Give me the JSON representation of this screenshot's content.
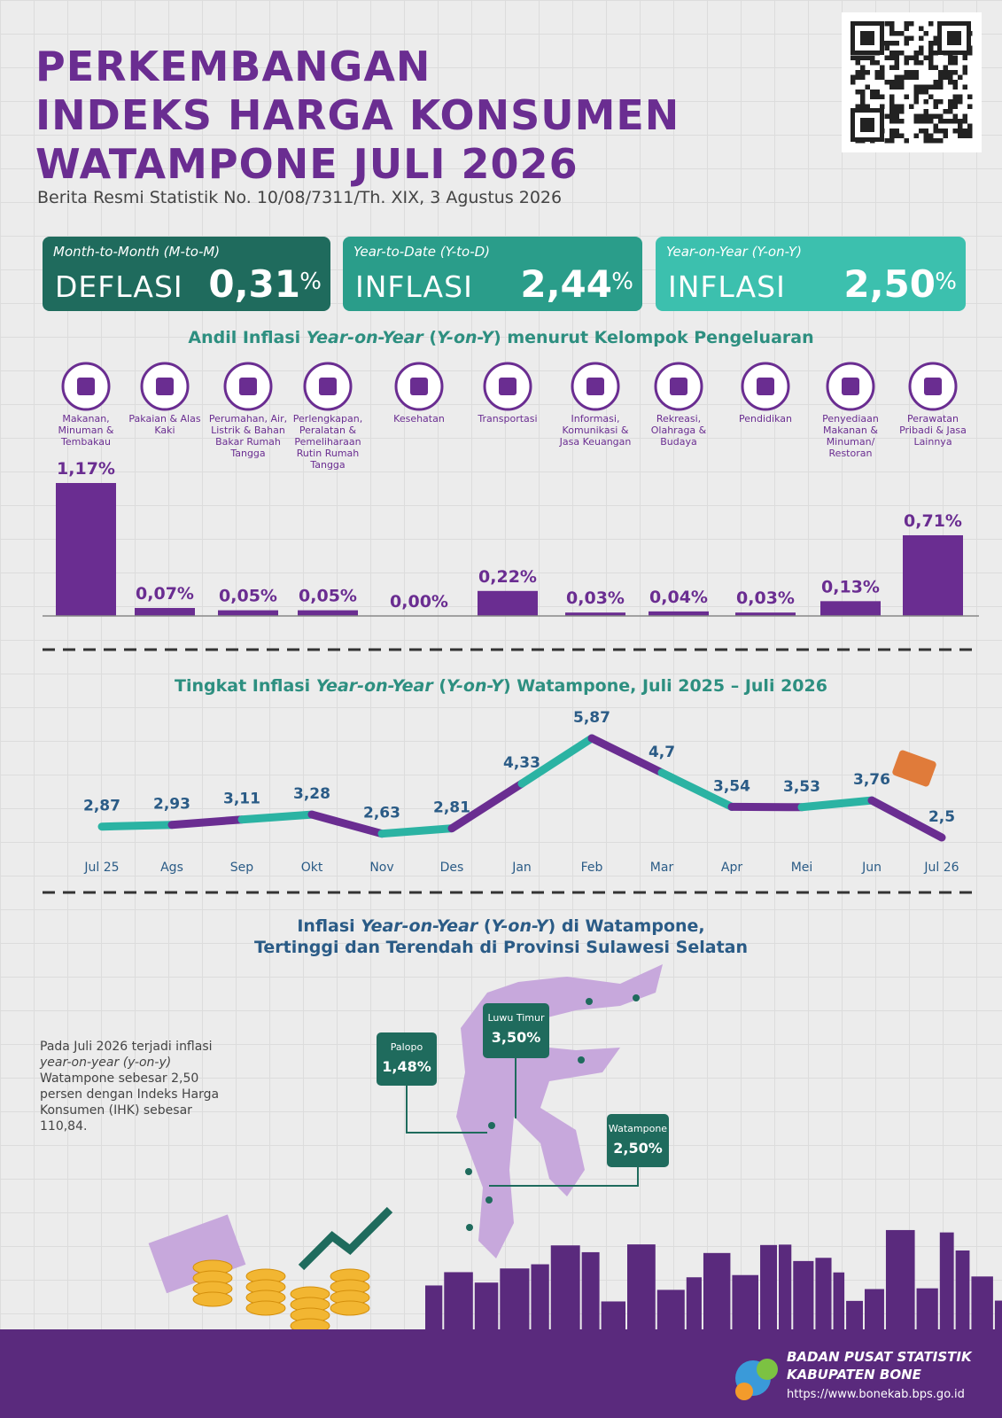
{
  "header": {
    "title_lines": [
      "PERKEMBANGAN",
      "INDEKS HARGA KONSUMEN",
      "WATAMPONE JULI 2026"
    ],
    "subtitle": "Berita Resmi Statistik No. 10/08/7311/Th. XIX, 3 Agustus 2026"
  },
  "indicators": [
    {
      "period": "Month-to-Month (M-to-M)",
      "status": "DEFLASI",
      "value": "0,31",
      "unit": "%",
      "color": "#1f6b5d"
    },
    {
      "period": "Year-to-Date (Y-to-D)",
      "status": "INFLASI",
      "value": "2,44",
      "unit": "%",
      "color": "#2a9d8a"
    },
    {
      "period": "Year-on-Year (Y-on-Y)",
      "status": "INFLASI",
      "value": "2,50",
      "unit": "%",
      "color": "#3cc0ae"
    }
  ],
  "chart_data": [
    {
      "type": "bar",
      "title_parts": [
        "Andil Inflasi ",
        "Year-on-Year",
        " (",
        "Y-on-Y",
        ") menurut Kelompok Pengeluaran"
      ],
      "categories": [
        "Makanan, Minuman & Tembakau",
        "Pakaian & Alas Kaki",
        "Perumahan, Air, Listrik & Bahan Bakar Rumah Tangga",
        "Perlengkapan, Peralatan & Pemeliharaan Rutin Rumah Tangga",
        "Kesehatan",
        "Transportasi",
        "Informasi, Komunikasi & Jasa Keuangan",
        "Rekreasi, Olahraga & Budaya",
        "Pendidikan",
        "Penyediaan Makanan & Minuman/ Restoran",
        "Perawatan Pribadi & Jasa Lainnya"
      ],
      "values": [
        1.17,
        0.07,
        0.05,
        0.05,
        0,
        0.22,
        0.03,
        0.04,
        0.03,
        0.13,
        0.71
      ],
      "value_labels": [
        "1,17%",
        "0,07%",
        "0,05%",
        "0,05%",
        "0,00%",
        "0,22%",
        "0,03%",
        "0,04%",
        "0,03%",
        "0,13%",
        "0,71%"
      ],
      "color": "#6a2d91"
    },
    {
      "type": "line",
      "title_parts": [
        "Tingkat Inflasi ",
        "Year-on-Year",
        " (",
        "Y-on-Y",
        ") Watampone, Juli 2025 – Juli 2026"
      ],
      "categories": [
        "Jul 25",
        "Ags",
        "Sep",
        "Okt",
        "Nov",
        "Des",
        "Jan",
        "Feb",
        "Mar",
        "Apr",
        "Mei",
        "Jun",
        "Jul 26"
      ],
      "series": [
        {
          "values": [
            2.87,
            2.93,
            3.11,
            3.28,
            2.63,
            2.81,
            4.33,
            5.87,
            4.7,
            3.54,
            3.53,
            3.76,
            2.5
          ],
          "value_labels": [
            "2,87",
            "2,93",
            "3,11",
            "3,28",
            "2,63",
            "2,81",
            "4,33",
            "5,87",
            "4,7",
            "3,54",
            "3,53",
            "3,76",
            "2,5"
          ],
          "colors": [
            "#2bb3a3",
            "#6a2d91"
          ]
        }
      ]
    }
  ],
  "map": {
    "title_parts": [
      "Inflasi ",
      "Year-on-Year",
      " (",
      "Y-on-Y",
      ") di Watampone,"
    ],
    "subtitle": "Tertinggi dan Terendah di Provinsi Sulawesi Selatan",
    "callouts": [
      {
        "name": "Palopo",
        "value": "1,48%"
      },
      {
        "name": "Luwu Timur",
        "value": "3,50%"
      },
      {
        "name": "Watampone",
        "value": "2,50%"
      }
    ],
    "note_parts": [
      "Pada Juli 2026 terjadi inflasi ",
      "year-on-year (y-on-y)",
      " Watampone sebesar 2,50 persen dengan Indeks Harga Konsumen (IHK) sebesar 110,84."
    ]
  },
  "footer": {
    "org": "BADAN PUSAT STATISTIK",
    "region": "KABUPATEN BONE",
    "url": "https://www.bonekab.bps.go.id"
  }
}
